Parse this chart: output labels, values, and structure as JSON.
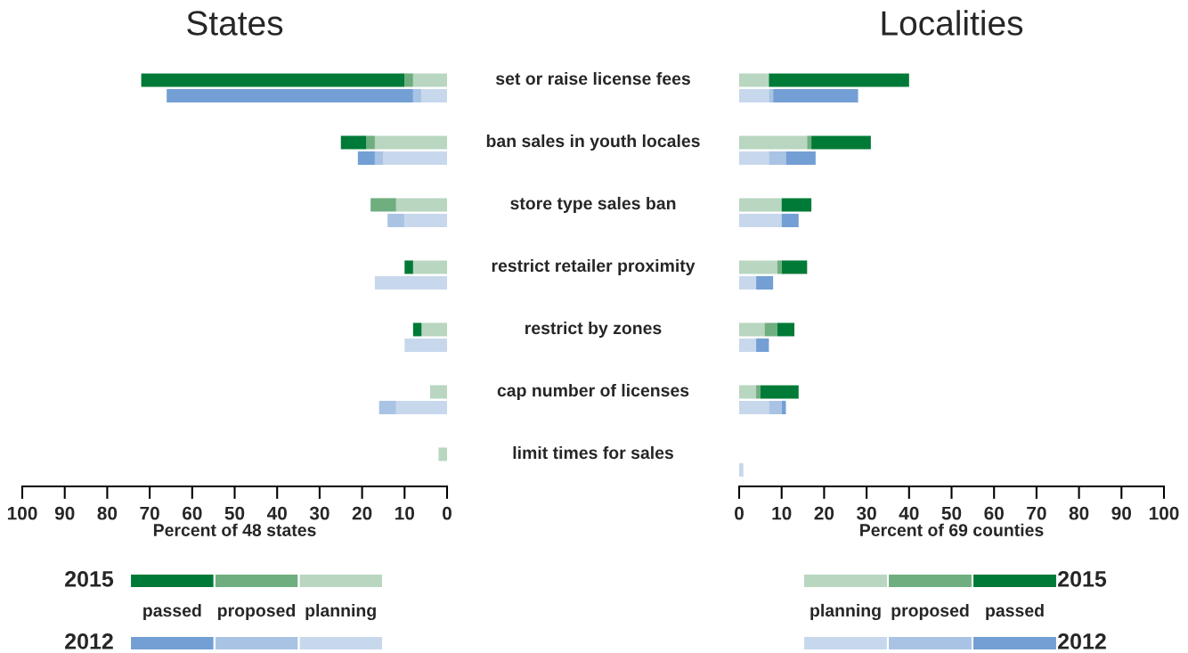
{
  "chart_data": [
    {
      "type": "bar",
      "title": "States",
      "xlabel": "Percent of 48 states",
      "orientation": "horizontal",
      "stacked": true,
      "legend": "bottom",
      "xlim": [
        100,
        0
      ],
      "xticks": [
        100,
        90,
        80,
        70,
        60,
        50,
        40,
        30,
        20,
        10,
        0
      ],
      "annotations": [
        "2015",
        "2012"
      ],
      "categories": [
        "set or raise license fees",
        null,
        null,
        null,
        "ban sales in youth locales",
        null,
        null,
        null,
        "store type sales ban",
        null,
        null,
        null,
        "restrict retailer proximity",
        null,
        null,
        null,
        "restrict by zones",
        null,
        null,
        null,
        "cap number of licenses",
        null,
        null,
        null,
        "limit times for sales",
        null,
        null,
        null
      ],
      "series": [
        {
          "name": "planning",
          "color": "#b8d6c0",
          "values": [
            8,
            null,
            null,
            null,
            17,
            null,
            null,
            null,
            12,
            null,
            null,
            null,
            8,
            null,
            null,
            null,
            6,
            null,
            null,
            null,
            4,
            null,
            null,
            null,
            2,
            null,
            null,
            null
          ]
        },
        {
          "name": "proposed",
          "color": "#6fae7f",
          "values": [
            2,
            null,
            null,
            null,
            2,
            null,
            null,
            null,
            6,
            null,
            null,
            null,
            null,
            null,
            null,
            null,
            null,
            null,
            null,
            null,
            null,
            null,
            null,
            null,
            null,
            null,
            null,
            null
          ]
        },
        {
          "name": "passed",
          "color": "#007a37",
          "values": [
            62,
            null,
            null,
            null,
            6,
            null,
            null,
            null,
            null,
            null,
            null,
            null,
            2,
            null,
            null,
            null,
            2,
            null,
            null,
            null,
            null,
            null,
            null,
            null,
            null,
            null,
            null,
            null
          ]
        },
        {
          "color": "#c7d8ed",
          "values": [
            null,
            6,
            null,
            null,
            null,
            15,
            null,
            null,
            null,
            10,
            null,
            null,
            null,
            17,
            null,
            null,
            null,
            10,
            null,
            null,
            null,
            12,
            null,
            null,
            null,
            null,
            null,
            null
          ]
        },
        {
          "color": "#a9c3e4",
          "values": [
            null,
            2,
            null,
            null,
            null,
            2,
            null,
            null,
            null,
            4,
            null,
            null,
            null,
            null,
            null,
            null,
            null,
            null,
            null,
            null,
            null,
            4,
            null,
            null,
            null,
            null,
            null,
            null
          ]
        },
        {
          "color": "#739fd4",
          "values": [
            null,
            58,
            null,
            null,
            null,
            4,
            null,
            null,
            null,
            null,
            null,
            null,
            null,
            null,
            null,
            null,
            null,
            null,
            null,
            null,
            null,
            null,
            null,
            null,
            null,
            null,
            null,
            null
          ]
        }
      ]
    },
    {
      "type": "bar",
      "title": "Localities",
      "xlabel": "Percent of 69 counties",
      "orientation": "horizontal",
      "stacked": true,
      "legend": "bottom",
      "tick_labels": "x",
      "xlim": [
        0,
        100
      ],
      "xticks": [
        0,
        10,
        20,
        30,
        40,
        50,
        60,
        70,
        80,
        90,
        100
      ],
      "annotations": [
        "2015",
        "2012"
      ],
      "categories": [
        null,
        null,
        null,
        null,
        null,
        null,
        null,
        null,
        null,
        null,
        null,
        null,
        null,
        null,
        null,
        null,
        null,
        null,
        null,
        null,
        null,
        null,
        null,
        null,
        null,
        null,
        null,
        null
      ],
      "series": [
        {
          "name": "planning",
          "color": "#b8d6c0",
          "values": [
            7,
            null,
            null,
            null,
            16,
            null,
            null,
            null,
            10,
            null,
            null,
            null,
            9,
            null,
            null,
            null,
            6,
            null,
            null,
            null,
            4,
            null,
            null,
            null,
            null,
            null,
            null,
            null
          ]
        },
        {
          "name": "proposed",
          "color": "#6fae7f",
          "values": [
            null,
            null,
            null,
            null,
            1,
            null,
            null,
            null,
            null,
            null,
            null,
            null,
            1,
            null,
            null,
            null,
            3,
            null,
            null,
            null,
            1,
            null,
            null,
            null,
            null,
            null,
            null,
            null
          ]
        },
        {
          "name": "passed",
          "color": "#007a37",
          "values": [
            33,
            null,
            null,
            null,
            14,
            null,
            null,
            null,
            7,
            null,
            null,
            null,
            6,
            null,
            null,
            null,
            4,
            null,
            null,
            null,
            9,
            null,
            null,
            null,
            null,
            null,
            null,
            null
          ]
        },
        {
          "color": "#c7d8ed",
          "values": [
            null,
            7,
            null,
            null,
            null,
            7,
            null,
            null,
            null,
            10,
            null,
            null,
            null,
            4,
            null,
            null,
            null,
            4,
            null,
            null,
            null,
            7,
            null,
            null,
            null,
            1,
            null,
            null
          ]
        },
        {
          "color": "#a9c3e4",
          "values": [
            null,
            1,
            null,
            null,
            null,
            4,
            null,
            null,
            null,
            null,
            null,
            null,
            null,
            null,
            null,
            null,
            null,
            null,
            null,
            null,
            null,
            3,
            null,
            null,
            null,
            null,
            null,
            null
          ]
        },
        {
          "color": "#739fd4",
          "values": [
            null,
            20,
            null,
            null,
            null,
            7,
            null,
            null,
            null,
            4,
            null,
            null,
            null,
            4,
            null,
            null,
            null,
            3,
            null,
            null,
            null,
            1,
            null,
            null,
            null,
            null,
            null,
            null
          ]
        }
      ]
    }
  ]
}
